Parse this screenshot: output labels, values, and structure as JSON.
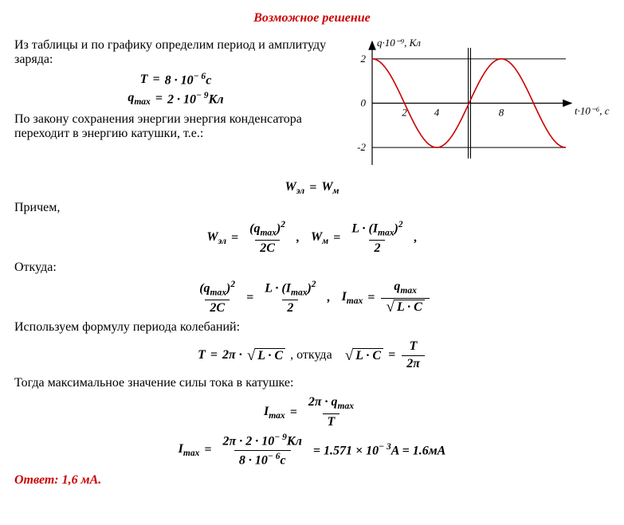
{
  "title": {
    "text": "Возможное решение",
    "color": "#cc0000"
  },
  "para1": "Из таблицы и по графику определим период и амплитуду заряда:",
  "eq1": {
    "lhs": "T",
    "rhs_coeff": "8 · 10",
    "rhs_exp": "− 6",
    "unit": "с"
  },
  "eq2": {
    "lhs": "q",
    "lhs_sub": "max",
    "rhs_coeff": "2 · 10",
    "rhs_exp": "− 9",
    "unit": "Кл"
  },
  "para2": "По закону сохранения энергии энергия конденсатора переходит в энергию катушки, т.е.:",
  "eq3": {
    "l": "W",
    "l_sub": "эл",
    "r": "W",
    "r_sub": "м"
  },
  "para3": "Причем,",
  "eq4": {
    "wel": "W",
    "wel_sub": "эл",
    "wel_num_base": "q",
    "wel_num_sub": "max",
    "wel_num_exp": "2",
    "wel_den": "2C",
    "wm": "W",
    "wm_sub": "м",
    "wm_num_pre": "L · ",
    "wm_num_base": "I",
    "wm_num_sub": "max",
    "wm_num_exp": "2",
    "wm_den": "2"
  },
  "para4": "Откуда:",
  "eq5": {
    "l_num_base": "q",
    "l_num_sub": "max",
    "l_num_exp": "2",
    "l_den": "2C",
    "r_num_pre": "L · ",
    "r_num_base": "I",
    "r_num_sub": "max",
    "r_num_exp": "2",
    "r_den": "2",
    "imax": "I",
    "imax_sub": "max",
    "i_num": "q",
    "i_num_sub": "max",
    "i_den_rad": "L · C"
  },
  "para5": "Используем формулу периода колебаний:",
  "eq6": {
    "T": "T",
    "twopi": "2π · ",
    "rad": "L · C",
    "mid": ", откуда",
    "r_rad": "L · C",
    "r_num": "T",
    "r_den": "2π"
  },
  "para6": "Тогда максимальное значение силы тока в катушке:",
  "eq7": {
    "l": "I",
    "l_sub": "max",
    "num": "2π · q",
    "num_sub": "max",
    "den": "T"
  },
  "eq8": {
    "l": "I",
    "l_sub": "max",
    "num_a": "2π · 2 · 10",
    "num_exp": "− 9",
    "num_unit": "Кл",
    "den_a": "8 · 10",
    "den_exp": "− 6",
    "den_unit": "с",
    "mid": " = 1.571 × 10",
    "mid_exp": "− 3",
    "mid_unit": "A = 1.6мА"
  },
  "answer": {
    "label": "Ответ: ",
    "value": "1,6 мА.",
    "color": "#cc0000"
  },
  "chart": {
    "type": "line",
    "curve_color": "#cc0000",
    "axis_color": "#000000",
    "grid_color": "#000000",
    "background_color": "#ffffff",
    "xlabel": "t·10⁻⁶, с",
    "ylabel": "q·10⁻⁹, Кл",
    "ylim": [
      -2.5,
      2.5
    ],
    "ytick": [
      -2,
      0,
      2
    ],
    "xlim": [
      0,
      12
    ],
    "xtick": [
      2,
      4,
      8
    ],
    "amplitude": 2,
    "period": 8,
    "phase": "cos",
    "line_width": 1.6
  }
}
